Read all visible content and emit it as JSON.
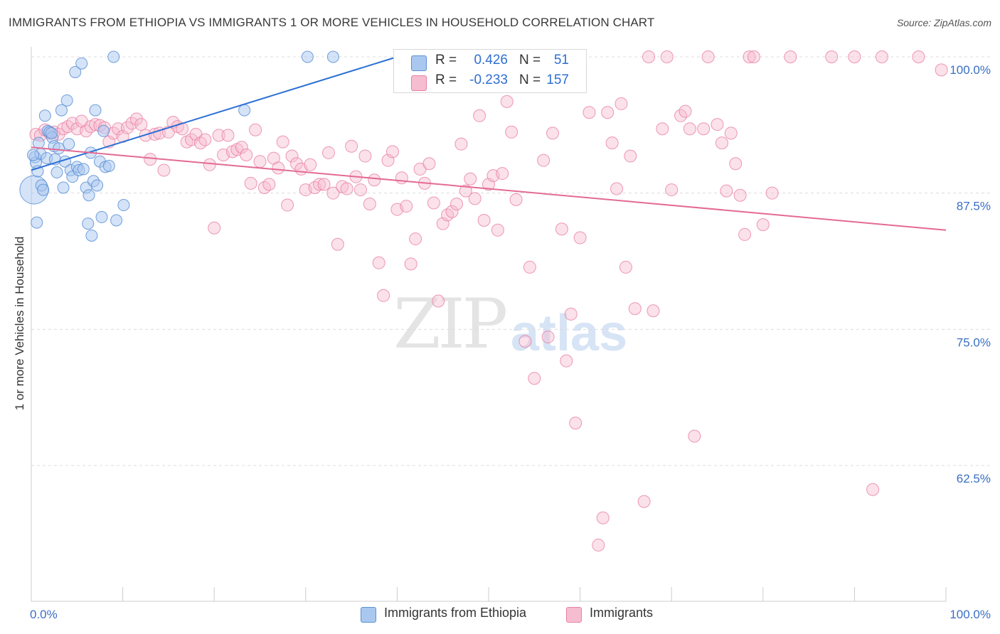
{
  "header": {
    "title": "IMMIGRANTS FROM ETHIOPIA VS IMMIGRANTS 1 OR MORE VEHICLES IN HOUSEHOLD CORRELATION CHART",
    "source": "Source: ZipAtlas.com"
  },
  "watermark": {
    "zip": "ZIP",
    "atlas": "atlas"
  },
  "legend_top": {
    "rows": [
      {
        "r_label": "R =",
        "r_value": "0.426",
        "n_label": "N =",
        "n_value": "51"
      },
      {
        "r_label": "R =",
        "r_value": "-0.233",
        "n_label": "N =",
        "n_value": "157"
      }
    ]
  },
  "legend_bottom": {
    "items": [
      "Immigrants from Ethiopia",
      "Immigrants"
    ]
  },
  "colors": {
    "blue_fill": "#aac8ef",
    "blue_stroke": "#5b8fd6",
    "blue_line": "#2a6fd4",
    "pink_fill": "#f6bdd0",
    "pink_stroke": "#e87fa3",
    "pink_line": "#e36a95",
    "value_text": "#2f6fd1"
  },
  "chart_data": {
    "type": "scatter",
    "title": "IMMIGRANTS FROM ETHIOPIA VS IMMIGRANTS 1 OR MORE VEHICLES IN HOUSEHOLD CORRELATION CHART",
    "xlabel": "",
    "ylabel": "1 or more Vehicles in Household",
    "xlim": [
      0,
      100
    ],
    "ylim": [
      50,
      101
    ],
    "x_tick_labels": [
      "0.0%",
      "100.0%"
    ],
    "y_tick_labels": [
      "100.0%",
      "87.5%",
      "75.0%",
      "62.5%"
    ],
    "y_tick_values": [
      100,
      87.5,
      75,
      62.5
    ],
    "grid": true,
    "series": [
      {
        "name": "Immigrants from Ethiopia",
        "r": 0.426,
        "n": 51,
        "trend": {
          "x": [
            0,
            40
          ],
          "y": [
            89.6,
            100.0
          ]
        },
        "points": [
          [
            0.3,
            87.8
          ],
          [
            0.4,
            90.8
          ],
          [
            0.5,
            90.3
          ],
          [
            0.6,
            84.8
          ],
          [
            0.7,
            89.5
          ],
          [
            1.0,
            91.1
          ],
          [
            1.1,
            88.2
          ],
          [
            1.3,
            87.8
          ],
          [
            1.5,
            94.6
          ],
          [
            1.7,
            90.7
          ],
          [
            1.8,
            93.2
          ],
          [
            2.0,
            93.1
          ],
          [
            2.3,
            92.6
          ],
          [
            2.5,
            91.8
          ],
          [
            2.6,
            90.6
          ],
          [
            2.8,
            89.4
          ],
          [
            3.0,
            91.6
          ],
          [
            3.3,
            95.1
          ],
          [
            3.5,
            88.0
          ],
          [
            3.7,
            90.4
          ],
          [
            3.9,
            96.0
          ],
          [
            4.1,
            92.0
          ],
          [
            4.3,
            89.6
          ],
          [
            4.5,
            89.0
          ],
          [
            4.8,
            98.6
          ],
          [
            5.0,
            89.9
          ],
          [
            5.2,
            89.6
          ],
          [
            5.5,
            99.4
          ],
          [
            5.7,
            89.7
          ],
          [
            6.0,
            88.0
          ],
          [
            6.2,
            84.7
          ],
          [
            6.3,
            87.3
          ],
          [
            6.5,
            91.2
          ],
          [
            6.6,
            83.6
          ],
          [
            6.8,
            88.6
          ],
          [
            7.0,
            95.1
          ],
          [
            7.2,
            88.2
          ],
          [
            7.5,
            90.4
          ],
          [
            7.7,
            85.3
          ],
          [
            7.9,
            93.2
          ],
          [
            8.1,
            89.9
          ],
          [
            8.5,
            90.0
          ],
          [
            9.0,
            100.0
          ],
          [
            9.3,
            85.0
          ],
          [
            10.1,
            86.4
          ],
          [
            23.3,
            95.1
          ],
          [
            30.2,
            100.0
          ],
          [
            33.0,
            100.0
          ],
          [
            0.2,
            91.0
          ],
          [
            0.8,
            92.1
          ],
          [
            2.2,
            93.0
          ]
        ]
      },
      {
        "name": "Immigrants",
        "r": -0.233,
        "n": 157,
        "trend": {
          "x": [
            0,
            100
          ],
          "y": [
            91.7,
            84.1
          ]
        },
        "points": [
          [
            0.5,
            92.9
          ],
          [
            1.0,
            92.8
          ],
          [
            1.5,
            93.3
          ],
          [
            2.0,
            93.0
          ],
          [
            2.5,
            93.1
          ],
          [
            3.0,
            92.9
          ],
          [
            3.5,
            93.4
          ],
          [
            4.0,
            93.6
          ],
          [
            4.5,
            93.9
          ],
          [
            5.0,
            93.4
          ],
          [
            5.5,
            94.1
          ],
          [
            6.0,
            93.2
          ],
          [
            6.5,
            93.6
          ],
          [
            7.0,
            93.8
          ],
          [
            7.5,
            93.7
          ],
          [
            8.0,
            93.5
          ],
          [
            8.5,
            92.2
          ],
          [
            9.0,
            93.0
          ],
          [
            9.5,
            93.4
          ],
          [
            10.0,
            92.7
          ],
          [
            10.5,
            93.5
          ],
          [
            11.0,
            93.9
          ],
          [
            11.5,
            94.3
          ],
          [
            12.0,
            93.8
          ],
          [
            12.5,
            92.8
          ],
          [
            13.0,
            90.6
          ],
          [
            13.5,
            92.9
          ],
          [
            14.0,
            93.0
          ],
          [
            14.5,
            89.6
          ],
          [
            15.0,
            93.1
          ],
          [
            15.5,
            94.0
          ],
          [
            16.0,
            93.6
          ],
          [
            16.5,
            93.4
          ],
          [
            17.0,
            92.2
          ],
          [
            17.5,
            92.4
          ],
          [
            18.0,
            92.9
          ],
          [
            18.5,
            92.1
          ],
          [
            19.0,
            92.4
          ],
          [
            19.5,
            90.1
          ],
          [
            20.0,
            84.3
          ],
          [
            20.5,
            92.8
          ],
          [
            21.0,
            91.0
          ],
          [
            21.5,
            92.8
          ],
          [
            22.0,
            91.3
          ],
          [
            22.5,
            91.5
          ],
          [
            23.0,
            91.7
          ],
          [
            23.5,
            91.0
          ],
          [
            24.0,
            88.4
          ],
          [
            24.5,
            93.3
          ],
          [
            25.0,
            90.4
          ],
          [
            25.5,
            88.0
          ],
          [
            26.0,
            88.3
          ],
          [
            26.5,
            90.7
          ],
          [
            27.0,
            89.8
          ],
          [
            27.5,
            92.2
          ],
          [
            28.0,
            86.4
          ],
          [
            28.5,
            90.9
          ],
          [
            29.0,
            90.2
          ],
          [
            29.5,
            89.7
          ],
          [
            30.0,
            87.8
          ],
          [
            30.5,
            90.1
          ],
          [
            31.0,
            88.0
          ],
          [
            31.5,
            88.3
          ],
          [
            32.0,
            88.3
          ],
          [
            32.5,
            91.2
          ],
          [
            33.0,
            87.5
          ],
          [
            33.5,
            82.8
          ],
          [
            34.0,
            88.1
          ],
          [
            34.5,
            87.9
          ],
          [
            35.0,
            91.8
          ],
          [
            35.5,
            89.0
          ],
          [
            36.0,
            87.8
          ],
          [
            36.5,
            90.9
          ],
          [
            37.0,
            86.5
          ],
          [
            37.5,
            88.7
          ],
          [
            38.0,
            81.1
          ],
          [
            38.5,
            78.1
          ],
          [
            39.0,
            90.5
          ],
          [
            39.5,
            91.3
          ],
          [
            40.0,
            86.0
          ],
          [
            40.5,
            88.9
          ],
          [
            41.0,
            86.3
          ],
          [
            41.5,
            81.0
          ],
          [
            42.0,
            83.3
          ],
          [
            42.5,
            89.7
          ],
          [
            43.0,
            88.4
          ],
          [
            43.5,
            90.2
          ],
          [
            44.0,
            86.6
          ],
          [
            44.5,
            77.6
          ],
          [
            45.0,
            84.7
          ],
          [
            45.5,
            85.5
          ],
          [
            46.0,
            85.8
          ],
          [
            46.5,
            86.5
          ],
          [
            47.0,
            92.0
          ],
          [
            47.5,
            87.7
          ],
          [
            48.0,
            88.8
          ],
          [
            48.5,
            87.0
          ],
          [
            49.0,
            94.6
          ],
          [
            49.5,
            85.0
          ],
          [
            50.0,
            88.3
          ],
          [
            50.5,
            89.1
          ],
          [
            51.0,
            84.1
          ],
          [
            51.5,
            89.3
          ],
          [
            52.0,
            95.9
          ],
          [
            52.5,
            93.1
          ],
          [
            53.0,
            86.9
          ],
          [
            54.0,
            73.9
          ],
          [
            54.5,
            80.7
          ],
          [
            55.0,
            70.5
          ],
          [
            56.0,
            90.5
          ],
          [
            56.5,
            74.3
          ],
          [
            57.0,
            93.0
          ],
          [
            58.0,
            84.2
          ],
          [
            58.5,
            72.1
          ],
          [
            59.0,
            76.4
          ],
          [
            59.5,
            66.4
          ],
          [
            60.0,
            83.4
          ],
          [
            61.0,
            94.9
          ],
          [
            62.0,
            55.2
          ],
          [
            62.5,
            57.7
          ],
          [
            63.0,
            94.9
          ],
          [
            63.5,
            92.1
          ],
          [
            64.0,
            87.9
          ],
          [
            64.5,
            95.7
          ],
          [
            65.0,
            80.7
          ],
          [
            65.5,
            90.9
          ],
          [
            66.0,
            76.9
          ],
          [
            67.0,
            59.2
          ],
          [
            68.0,
            76.7
          ],
          [
            69.0,
            93.4
          ],
          [
            69.5,
            100.0
          ],
          [
            70.0,
            87.8
          ],
          [
            71.0,
            94.6
          ],
          [
            71.5,
            95.0
          ],
          [
            72.0,
            93.4
          ],
          [
            72.5,
            65.2
          ],
          [
            73.5,
            93.4
          ],
          [
            74.0,
            100.0
          ],
          [
            75.0,
            93.8
          ],
          [
            75.5,
            92.1
          ],
          [
            76.0,
            87.7
          ],
          [
            76.5,
            93.0
          ],
          [
            77.0,
            90.2
          ],
          [
            77.5,
            87.3
          ],
          [
            78.0,
            83.7
          ],
          [
            78.5,
            100.0
          ],
          [
            79.0,
            100.0
          ],
          [
            80.0,
            84.6
          ],
          [
            81.0,
            87.5
          ],
          [
            83.0,
            100.0
          ],
          [
            87.5,
            100.0
          ],
          [
            90.0,
            100.0
          ],
          [
            92.0,
            60.3
          ],
          [
            93.0,
            100.0
          ],
          [
            97.0,
            100.0
          ],
          [
            99.5,
            98.8
          ],
          [
            67.5,
            100.0
          ]
        ]
      }
    ]
  }
}
